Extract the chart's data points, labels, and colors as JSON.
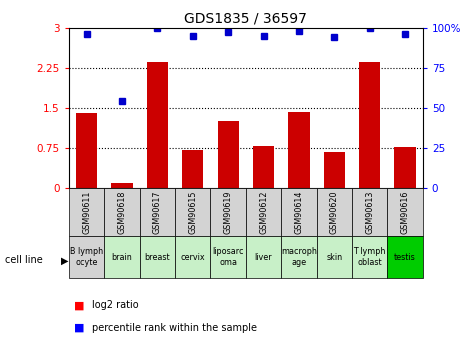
{
  "title": "GDS1835 / 36597",
  "samples": [
    "GSM90611",
    "GSM90618",
    "GSM90617",
    "GSM90615",
    "GSM90619",
    "GSM90612",
    "GSM90614",
    "GSM90620",
    "GSM90613",
    "GSM90616"
  ],
  "cell_lines": [
    "B lymph\nocyte",
    "brain",
    "breast",
    "cervix",
    "liposarc\noma",
    "liver",
    "macroph\nage",
    "skin",
    "T lymph\noblast",
    "testis"
  ],
  "log2_ratio": [
    1.4,
    0.1,
    2.35,
    0.72,
    1.25,
    0.78,
    1.42,
    0.68,
    2.36,
    0.76
  ],
  "percentile_rank": [
    2.88,
    1.62,
    3.0,
    2.85,
    2.91,
    2.85,
    2.93,
    2.83,
    3.0,
    2.88
  ],
  "bar_color": "#cc0000",
  "dot_color": "#0000cc",
  "ylim_left": [
    0,
    3
  ],
  "yticks_left": [
    0,
    0.75,
    1.5,
    2.25,
    3.0
  ],
  "ytick_labels_left": [
    "0",
    "0.75",
    "1.5",
    "2.25",
    "3"
  ],
  "ytick_labels_right": [
    "0",
    "25",
    "50",
    "75",
    "100%"
  ],
  "cell_line_bg_colors": [
    "#d3d3d3",
    "#c8f0c8",
    "#c8f0c8",
    "#c8f0c8",
    "#c8f0c8",
    "#c8f0c8",
    "#c8f0c8",
    "#c8f0c8",
    "#c8f0c8",
    "#00cc00"
  ],
  "sample_bg_color": "#d3d3d3",
  "legend_log2": "log2 ratio",
  "legend_pct": "percentile rank within the sample",
  "cell_line_label": "cell line"
}
